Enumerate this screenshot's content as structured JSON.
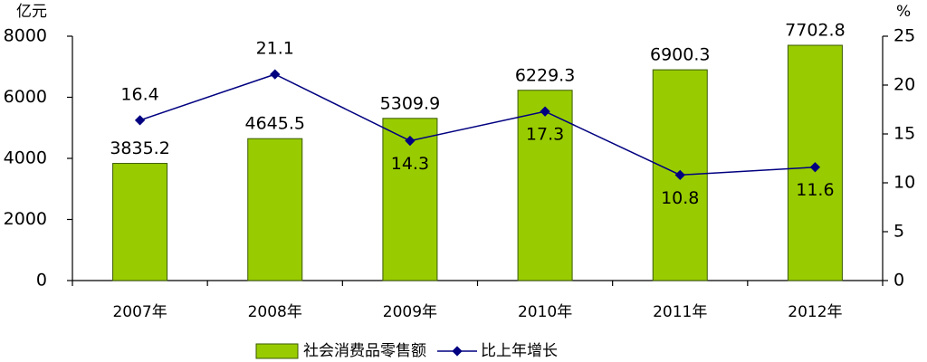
{
  "chart_data": {
    "type": "combo",
    "y_unit": "亿元",
    "y2_unit": "%",
    "categories": [
      "2007年",
      "2008年",
      "2009年",
      "2010年",
      "2011年",
      "2012年"
    ],
    "series": [
      {
        "name": "社会消费品零售额",
        "type": "bar",
        "color": "#99cc00",
        "values": [
          3835.2,
          4645.5,
          5309.9,
          6229.3,
          6900.3,
          7702.8
        ]
      },
      {
        "name": "比上年增长",
        "type": "line",
        "axis": "y2",
        "color": "#000080",
        "values": [
          16.4,
          21.1,
          14.3,
          17.3,
          10.8,
          11.6
        ]
      }
    ],
    "ylim": [
      0,
      8000
    ],
    "yticks": [
      0,
      2000,
      4000,
      6000,
      8000
    ],
    "y2lim": [
      0,
      25
    ],
    "y2ticks": [
      0,
      5,
      10,
      15,
      20,
      25
    ],
    "grid": false,
    "legend": "bottom"
  }
}
